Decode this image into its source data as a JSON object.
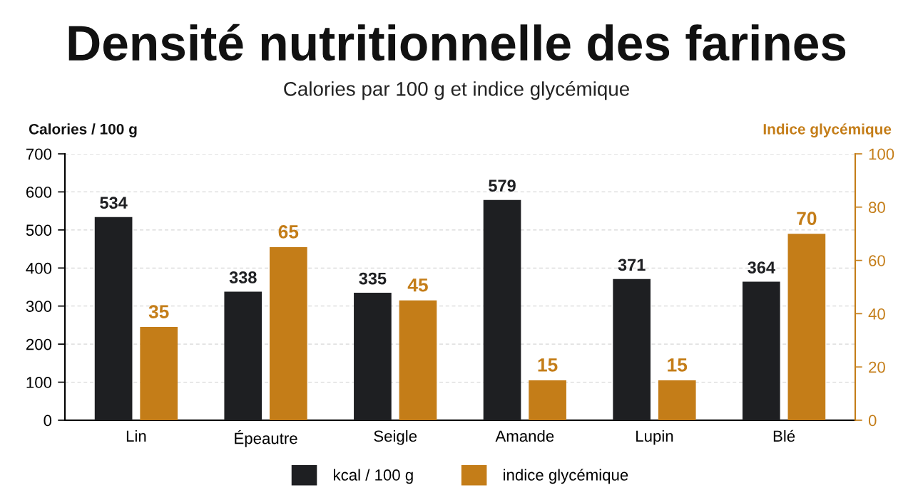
{
  "chart_data": {
    "type": "bar",
    "title": "Densité nutritionnelle des farines",
    "subtitle": "Calories par 100 g et indice glycémique",
    "ylabel": "Calories / 100 g",
    "y2label": "Indice glycémique",
    "categories": [
      "Lin",
      "Épeautre",
      "Seigle",
      "Amande",
      "Lupin",
      "Blé"
    ],
    "series": [
      {
        "name": "kcal / 100 g",
        "color": "#1e1f22",
        "values": [
          534,
          338,
          335,
          579,
          371,
          364
        ]
      },
      {
        "name": "indice glycémique",
        "color": "#c47d18",
        "axis": "y2",
        "values": [
          35,
          65,
          45,
          15,
          15,
          70
        ]
      }
    ],
    "ylim": [
      0,
      700
    ],
    "yticks": [
      0,
      100,
      200,
      300,
      400,
      500,
      600,
      700
    ],
    "y2lim": [
      0,
      100
    ],
    "y2ticks": [
      0,
      20,
      40,
      60,
      80,
      100
    ],
    "grid": "y",
    "legend": "bottom",
    "data_labels": true
  }
}
